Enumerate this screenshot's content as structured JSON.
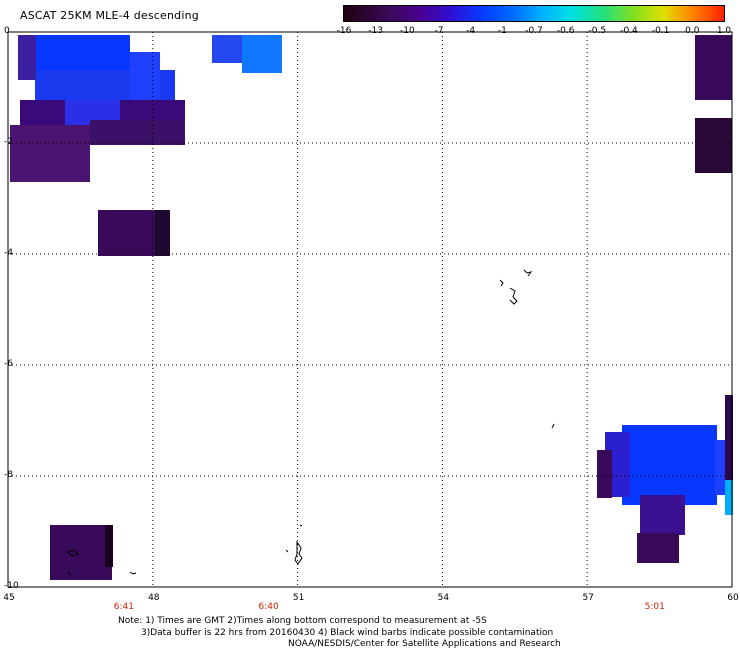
{
  "title": "ASCAT 25KM MLE-4 descending",
  "colorbar": {
    "labels": [
      "-16",
      "-13",
      "-10",
      "-7",
      "-4",
      "-1",
      "-0.7",
      "-0.6",
      "-0.5",
      "-0.4",
      "-0.1",
      "0.0",
      "1.0"
    ],
    "colors": [
      "#200010",
      "#3a0a5a",
      "#4a0090",
      "#3010d0",
      "#0838ff",
      "#0070ff",
      "#00b0ff",
      "#00e0e0",
      "#20e080",
      "#80e020",
      "#e0e000",
      "#ff8000",
      "#ff2000"
    ]
  },
  "axes": {
    "y_labels": [
      "0",
      "-2",
      "-4",
      "-6",
      "-8",
      "-10"
    ],
    "x_labels": [
      "45",
      "48",
      "51",
      "54",
      "57",
      "60"
    ],
    "time_labels": [
      {
        "lon": 47.4,
        "text": "6:41"
      },
      {
        "lon": 50.4,
        "text": "6:40"
      },
      {
        "lon": 58.4,
        "text": "5:01"
      }
    ]
  },
  "notes": [
    "Note: 1) Times are GMT 2)Times along bottom correspond to measurement at -5S",
    "3)Data buffer is 22 hrs from 20160430 4) Black wind barbs indicate possible contamination",
    "NOAA/NESDIS/Center for Satellite Applications and Research"
  ]
}
